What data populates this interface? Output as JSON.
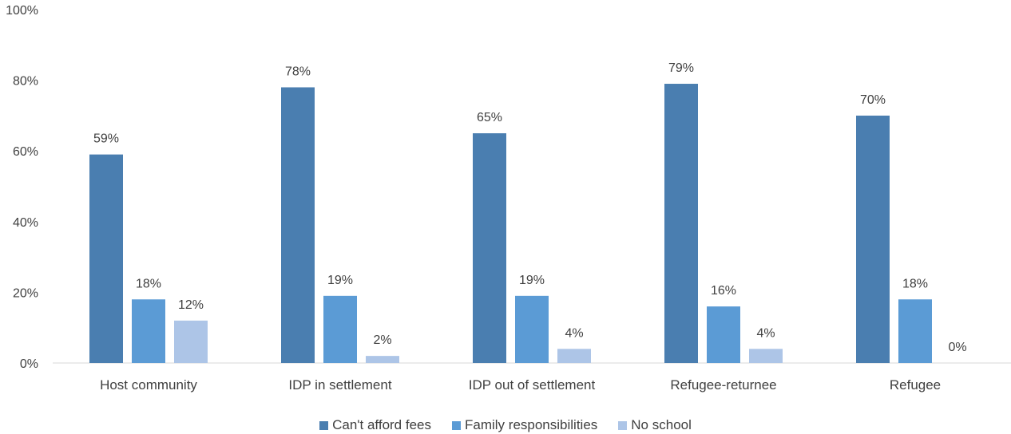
{
  "chart_data": {
    "type": "bar",
    "categories": [
      "Host community",
      "IDP in settlement",
      "IDP out of settlement",
      "Refugee-returnee",
      "Refugee"
    ],
    "series": [
      {
        "name": "Can't afford fees",
        "values": [
          59,
          78,
          65,
          79,
          70
        ],
        "labels": [
          "59%",
          "78%",
          "65%",
          "79%",
          "70%"
        ],
        "color": "#4a7eb0"
      },
      {
        "name": "Family responsibilities",
        "values": [
          18,
          19,
          19,
          16,
          18
        ],
        "labels": [
          "18%",
          "19%",
          "19%",
          "16%",
          "18%"
        ],
        "color": "#5b9bd5"
      },
      {
        "name": "No school",
        "values": [
          12,
          2,
          4,
          4,
          0
        ],
        "labels": [
          "12%",
          "2%",
          "4%",
          "4%",
          "0%"
        ],
        "color": "#adc5e7"
      }
    ],
    "y_ticks": [
      "0%",
      "20%",
      "40%",
      "60%",
      "80%",
      "100%"
    ],
    "ylim": [
      0,
      100
    ],
    "grid": false,
    "legend_position": "bottom",
    "title": "",
    "xlabel": "",
    "ylabel": ""
  }
}
